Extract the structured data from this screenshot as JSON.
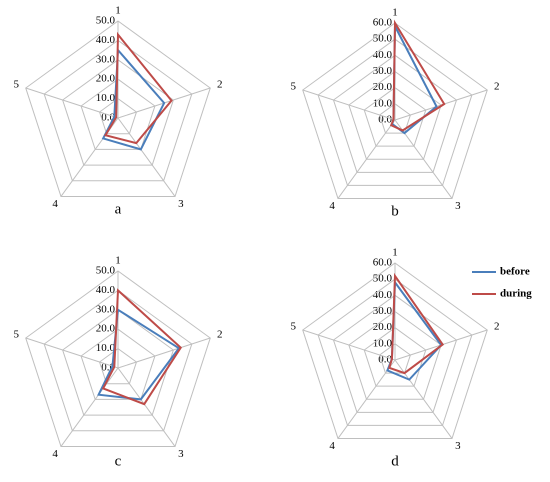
{
  "chart_data": [
    {
      "type": "radar",
      "title": "a",
      "categories": [
        "1",
        "2",
        "3",
        "4",
        "5"
      ],
      "ylim": [
        0,
        50
      ],
      "yticks": [
        {
          "value": 0,
          "label": "0.0"
        },
        {
          "value": 10,
          "label": "10.0"
        },
        {
          "value": 20,
          "label": "20.0"
        },
        {
          "value": 30,
          "label": "30.0"
        },
        {
          "value": 40,
          "label": "40.0"
        },
        {
          "value": 50,
          "label": "50.0"
        }
      ],
      "series": [
        {
          "color": "#4a7ebb",
          "values": [
            35,
            25,
            20,
            13,
            2
          ]
        },
        {
          "color": "#be4b48",
          "values": [
            43,
            29,
            16,
            11,
            1
          ]
        }
      ]
    },
    {
      "type": "radar",
      "title": "b",
      "categories": [
        "1",
        "2",
        "3",
        "4",
        "5"
      ],
      "ylim": [
        0,
        60
      ],
      "yticks": [
        {
          "value": 0,
          "label": "0.0"
        },
        {
          "value": 10,
          "label": "10.0"
        },
        {
          "value": 20,
          "label": "20.0"
        },
        {
          "value": 30,
          "label": "30.0"
        },
        {
          "value": 40,
          "label": "40.0"
        },
        {
          "value": 50,
          "label": "50.0"
        },
        {
          "value": 60,
          "label": "60.0"
        }
      ],
      "series": [
        {
          "color": "#4a7ebb",
          "values": [
            58,
            27,
            10,
            3,
            1
          ]
        },
        {
          "color": "#be4b48",
          "values": [
            60,
            32,
            8,
            4,
            1
          ]
        }
      ]
    },
    {
      "type": "radar",
      "title": "c",
      "categories": [
        "1",
        "2",
        "3",
        "4",
        "5"
      ],
      "ylim": [
        0,
        50
      ],
      "yticks": [
        {
          "value": 0,
          "label": "0.0"
        },
        {
          "value": 10,
          "label": "10.0"
        },
        {
          "value": 20,
          "label": "20.0"
        },
        {
          "value": 30,
          "label": "30.0"
        },
        {
          "value": 40,
          "label": "40.0"
        },
        {
          "value": 50,
          "label": "50.0"
        }
      ],
      "series": [
        {
          "color": "#4a7ebb",
          "values": [
            30,
            33,
            20,
            17,
            3
          ]
        },
        {
          "color": "#be4b48",
          "values": [
            40,
            34,
            23,
            13,
            2
          ]
        }
      ]
    },
    {
      "type": "radar",
      "title": "d",
      "categories": [
        "1",
        "2",
        "3",
        "4",
        "5"
      ],
      "ylim": [
        0,
        60
      ],
      "yticks": [
        {
          "value": 0,
          "label": "0.0"
        },
        {
          "value": 10,
          "label": "10.0"
        },
        {
          "value": 20,
          "label": "20.0"
        },
        {
          "value": 30,
          "label": "30.0"
        },
        {
          "value": 40,
          "label": "40.0"
        },
        {
          "value": 50,
          "label": "50.0"
        },
        {
          "value": 60,
          "label": "60.0"
        }
      ],
      "series": [
        {
          "name": "before",
          "color": "#4a7ebb",
          "values": [
            48,
            30,
            15,
            8,
            2
          ]
        },
        {
          "name": "during",
          "color": "#be4b48",
          "values": [
            52,
            31,
            10,
            6,
            2
          ]
        }
      ]
    }
  ]
}
